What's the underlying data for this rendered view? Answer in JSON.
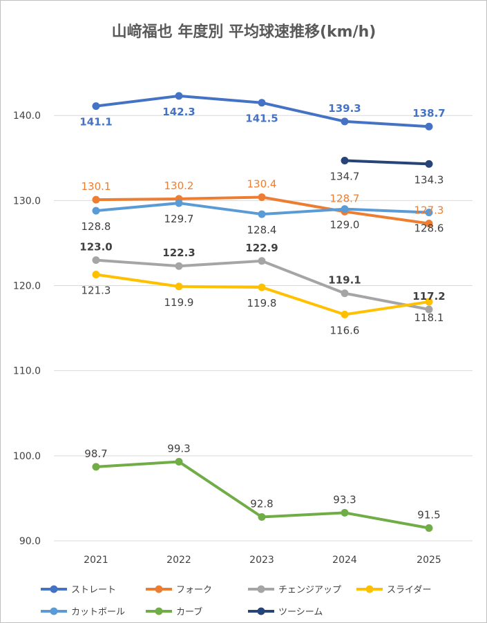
{
  "chart_data": {
    "type": "line",
    "title": "山﨑福也 年度別 平均球速推移(km/h)",
    "categories": [
      "2021",
      "2022",
      "2023",
      "2024",
      "2025"
    ],
    "y_ticks": [
      "90.0",
      "100.0",
      "110.0",
      "120.0",
      "130.0",
      "140.0"
    ],
    "ylim": [
      90,
      147
    ],
    "grid": true,
    "legend_position": "bottom",
    "series": [
      {
        "name": "ストレート",
        "color": "#4472C4",
        "label_color": "#4472C4",
        "label_weight": "bold",
        "values": [
          141.1,
          142.3,
          141.5,
          139.3,
          138.7
        ],
        "labels": [
          "141.1",
          "142.3",
          "141.5",
          "139.3",
          "138.7"
        ],
        "label_pos": [
          "below",
          "below",
          "below",
          "above",
          "above"
        ]
      },
      {
        "name": "フォーク",
        "color": "#ED7D31",
        "label_color": "#ED7D31",
        "label_weight": "normal",
        "values": [
          130.1,
          130.2,
          130.4,
          128.7,
          127.3
        ],
        "labels": [
          "130.1",
          "130.2",
          "130.4",
          "128.7",
          "127.3"
        ],
        "label_pos": [
          "above",
          "above",
          "above",
          "above",
          "above"
        ]
      },
      {
        "name": "チェンジアップ",
        "color": "#A5A5A5",
        "label_color": "#404040",
        "label_weight": "bold",
        "values": [
          123.0,
          122.3,
          122.9,
          119.1,
          117.2
        ],
        "labels": [
          "123.0",
          "122.3",
          "122.9",
          "119.1",
          "117.2"
        ],
        "label_pos": [
          "above",
          "above",
          "above",
          "above",
          "above"
        ]
      },
      {
        "name": "スライダー",
        "color": "#FFC000",
        "label_color": "#404040",
        "label_weight": "normal",
        "values": [
          121.3,
          119.9,
          119.8,
          116.6,
          118.1
        ],
        "labels": [
          "121.3",
          "119.9",
          "119.8",
          "116.6",
          "118.1"
        ],
        "label_pos": [
          "below",
          "below",
          "below",
          "below",
          "below"
        ]
      },
      {
        "name": "カットボール",
        "color": "#5B9BD5",
        "label_color": "#404040",
        "label_weight": "normal",
        "values": [
          128.8,
          129.7,
          128.4,
          129.0,
          128.6
        ],
        "labels": [
          "128.8",
          "129.7",
          "128.4",
          "129.0",
          "128.6"
        ],
        "label_pos": [
          "below",
          "below",
          "below",
          "below",
          "below"
        ]
      },
      {
        "name": "カーブ",
        "color": "#70AD47",
        "label_color": "#404040",
        "label_weight": "normal",
        "values": [
          98.7,
          99.3,
          92.8,
          93.3,
          91.5
        ],
        "labels": [
          "98.7",
          "99.3",
          "92.8",
          "93.3",
          "91.5"
        ],
        "label_pos": [
          "above",
          "above",
          "above",
          "above",
          "above"
        ]
      },
      {
        "name": "ツーシーム",
        "color": "#264478",
        "label_color": "#404040",
        "label_weight": "normal",
        "values": [
          null,
          null,
          null,
          134.7,
          134.3
        ],
        "labels": [
          null,
          null,
          null,
          "134.7",
          "134.3"
        ],
        "label_pos": [
          null,
          null,
          null,
          "below",
          "below"
        ]
      }
    ]
  }
}
